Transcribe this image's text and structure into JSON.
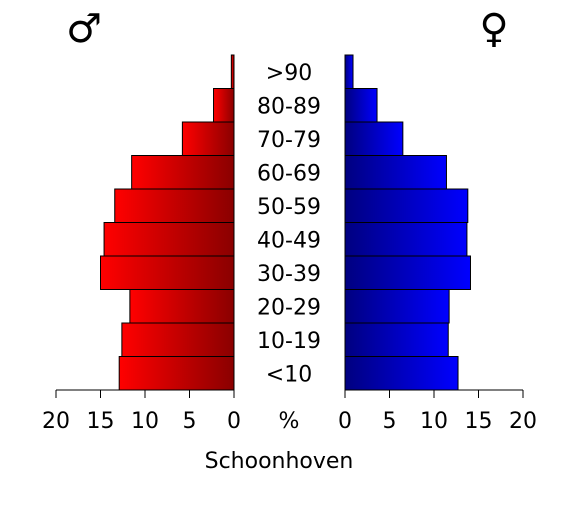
{
  "chart_data": {
    "type": "bar",
    "subtype": "population-pyramid",
    "title": "",
    "xlabel": "Schoonhoven",
    "unit_label": "%",
    "categories": [
      "<10",
      "10-19",
      "20-29",
      "30-39",
      "40-49",
      "50-59",
      "60-69",
      "70-79",
      "80-89",
      ">90"
    ],
    "series": [
      {
        "symbol": "♂",
        "side": "left",
        "color": "#e60000",
        "values": [
          12.9,
          12.6,
          11.7,
          15.0,
          14.6,
          13.4,
          11.5,
          5.8,
          2.3,
          0.3
        ]
      },
      {
        "symbol": "♀",
        "side": "right",
        "color": "#0000dd",
        "values": [
          12.7,
          11.6,
          11.7,
          14.1,
          13.7,
          13.8,
          11.4,
          6.5,
          3.6,
          0.9
        ]
      }
    ],
    "xlim": [
      0,
      20
    ],
    "ticks": [
      "20",
      "15",
      "10",
      "5",
      "0"
    ],
    "ticks_right": [
      "0",
      "5",
      "10",
      "15",
      "20"
    ],
    "grid": false,
    "legend": "none"
  }
}
